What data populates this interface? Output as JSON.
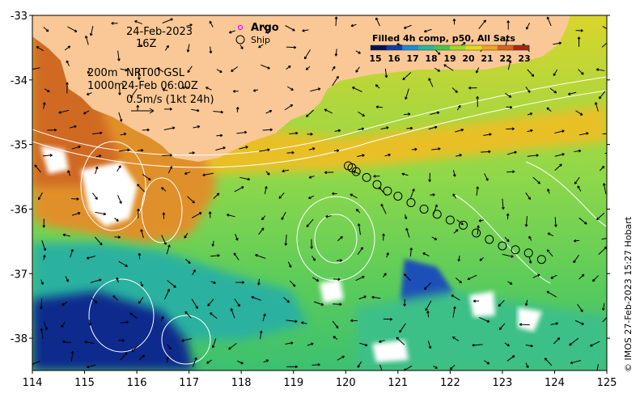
{
  "date_label": "24-Feb-2023",
  "time_label": "16Z",
  "legend": {
    "argo_label": "Argo",
    "ship_label": "Ship"
  },
  "depth_info": {
    "line1_left": "200m",
    "line1_right": "NRT00 GSL",
    "line2_left": "1000m",
    "line2_right": "24-Feb 06:00Z"
  },
  "vector_scale_label": "0.5m/s (1kt 24h)",
  "colorbar": {
    "title": "Filled 4h comp, p50, All Sats",
    "ticks": [
      "15",
      "16",
      "17",
      "18",
      "19",
      "20",
      "21",
      "22",
      "23"
    ],
    "colors": [
      "#08104f",
      "#0a3fa6",
      "#1a8ad8",
      "#26b59e",
      "#46c44a",
      "#9ed92a",
      "#e4da1a",
      "#f0a420",
      "#d8621c",
      "#a42812"
    ]
  },
  "x_axis": {
    "ticks": [
      "114",
      "115",
      "116",
      "117",
      "118",
      "119",
      "120",
      "121",
      "122",
      "123",
      "124",
      "125"
    ]
  },
  "y_axis": {
    "ticks": [
      "-33",
      "-34",
      "-35",
      "-36",
      "-37",
      "-38"
    ]
  },
  "credit": "© IMOS 27-Feb-2023 15:27 Hobart",
  "colors": {
    "land": "#f9c896",
    "coast_warm": "#e0902a",
    "ocean_mid": "#8fd84a",
    "ocean_cool": "#34c0a0",
    "ocean_cold": "#0b2c8c",
    "cloud": "#ffffff",
    "argo": "#ff00ff"
  },
  "chart_data": {
    "type": "map",
    "xlim": [
      114,
      125
    ],
    "ylim": [
      -38.5,
      -33
    ],
    "xlabel": "",
    "ylabel": "",
    "ship_track": {
      "lon": [
        120.05,
        120.12,
        120.2,
        120.4,
        120.6,
        120.8,
        121.0,
        121.25,
        121.5,
        121.75,
        122.0,
        122.25,
        122.5,
        122.75,
        123.0,
        123.25,
        123.5,
        123.75
      ],
      "lat": [
        -35.33,
        -35.36,
        -35.42,
        -35.51,
        -35.62,
        -35.72,
        -35.8,
        -35.9,
        -36.0,
        -36.08,
        -36.17,
        -36.25,
        -36.37,
        -36.47,
        -36.57,
        -36.63,
        -36.68,
        -36.78
      ]
    },
    "argo_floats": []
  }
}
